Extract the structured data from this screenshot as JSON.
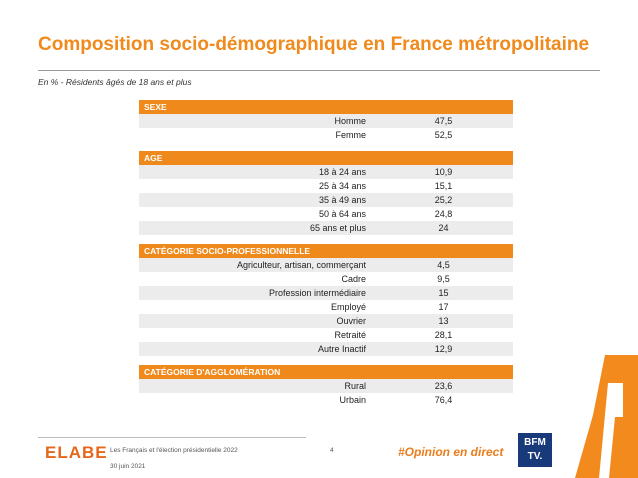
{
  "title": "Composition socio-démographique en France métropolitaine",
  "subtitle": "En % - Résidents âgés de 18 ans et plus",
  "sections": [
    {
      "header": "SEXE",
      "rows": [
        {
          "label": "Homme",
          "value": "47,5"
        },
        {
          "label": "Femme",
          "value": "52,5"
        }
      ]
    },
    {
      "header": "AGE",
      "rows": [
        {
          "label": "18 à 24 ans",
          "value": "10,9"
        },
        {
          "label": "25 à 34 ans",
          "value": "15,1"
        },
        {
          "label": "35 à 49 ans",
          "value": "25,2"
        },
        {
          "label": "50 à 64 ans",
          "value": "24,8"
        },
        {
          "label": "65 ans et plus",
          "value": "24"
        }
      ]
    },
    {
      "header": "CATÉGORIE SOCIO-PROFESSIONNELLE",
      "rows": [
        {
          "label": "Agriculteur, artisan, commerçant",
          "value": "4,5"
        },
        {
          "label": "Cadre",
          "value": "9,5"
        },
        {
          "label": "Profession intermédiaire",
          "value": "15"
        },
        {
          "label": "Employé",
          "value": "17"
        },
        {
          "label": "Ouvrier",
          "value": "13"
        },
        {
          "label": "Retraité",
          "value": "28,1"
        },
        {
          "label": "Autre Inactif",
          "value": "12,9"
        }
      ]
    },
    {
      "header": "CATÉGORIE D'AGGLOMÉRATION",
      "rows": [
        {
          "label": "Rural",
          "value": "23,6"
        },
        {
          "label": "Urbain",
          "value": "76,4"
        }
      ]
    }
  ],
  "footer": {
    "logo": "ELABE",
    "line1": "Les Français et l'élection présidentielle 2022",
    "line2": "30 juin 2021",
    "page": "4",
    "hashtag": "#Opinion en direct",
    "partner_logo_top": "BFM",
    "partner_logo_bottom": "TV."
  },
  "colors": {
    "accent": "#f0891b",
    "partner": "#18397a"
  }
}
